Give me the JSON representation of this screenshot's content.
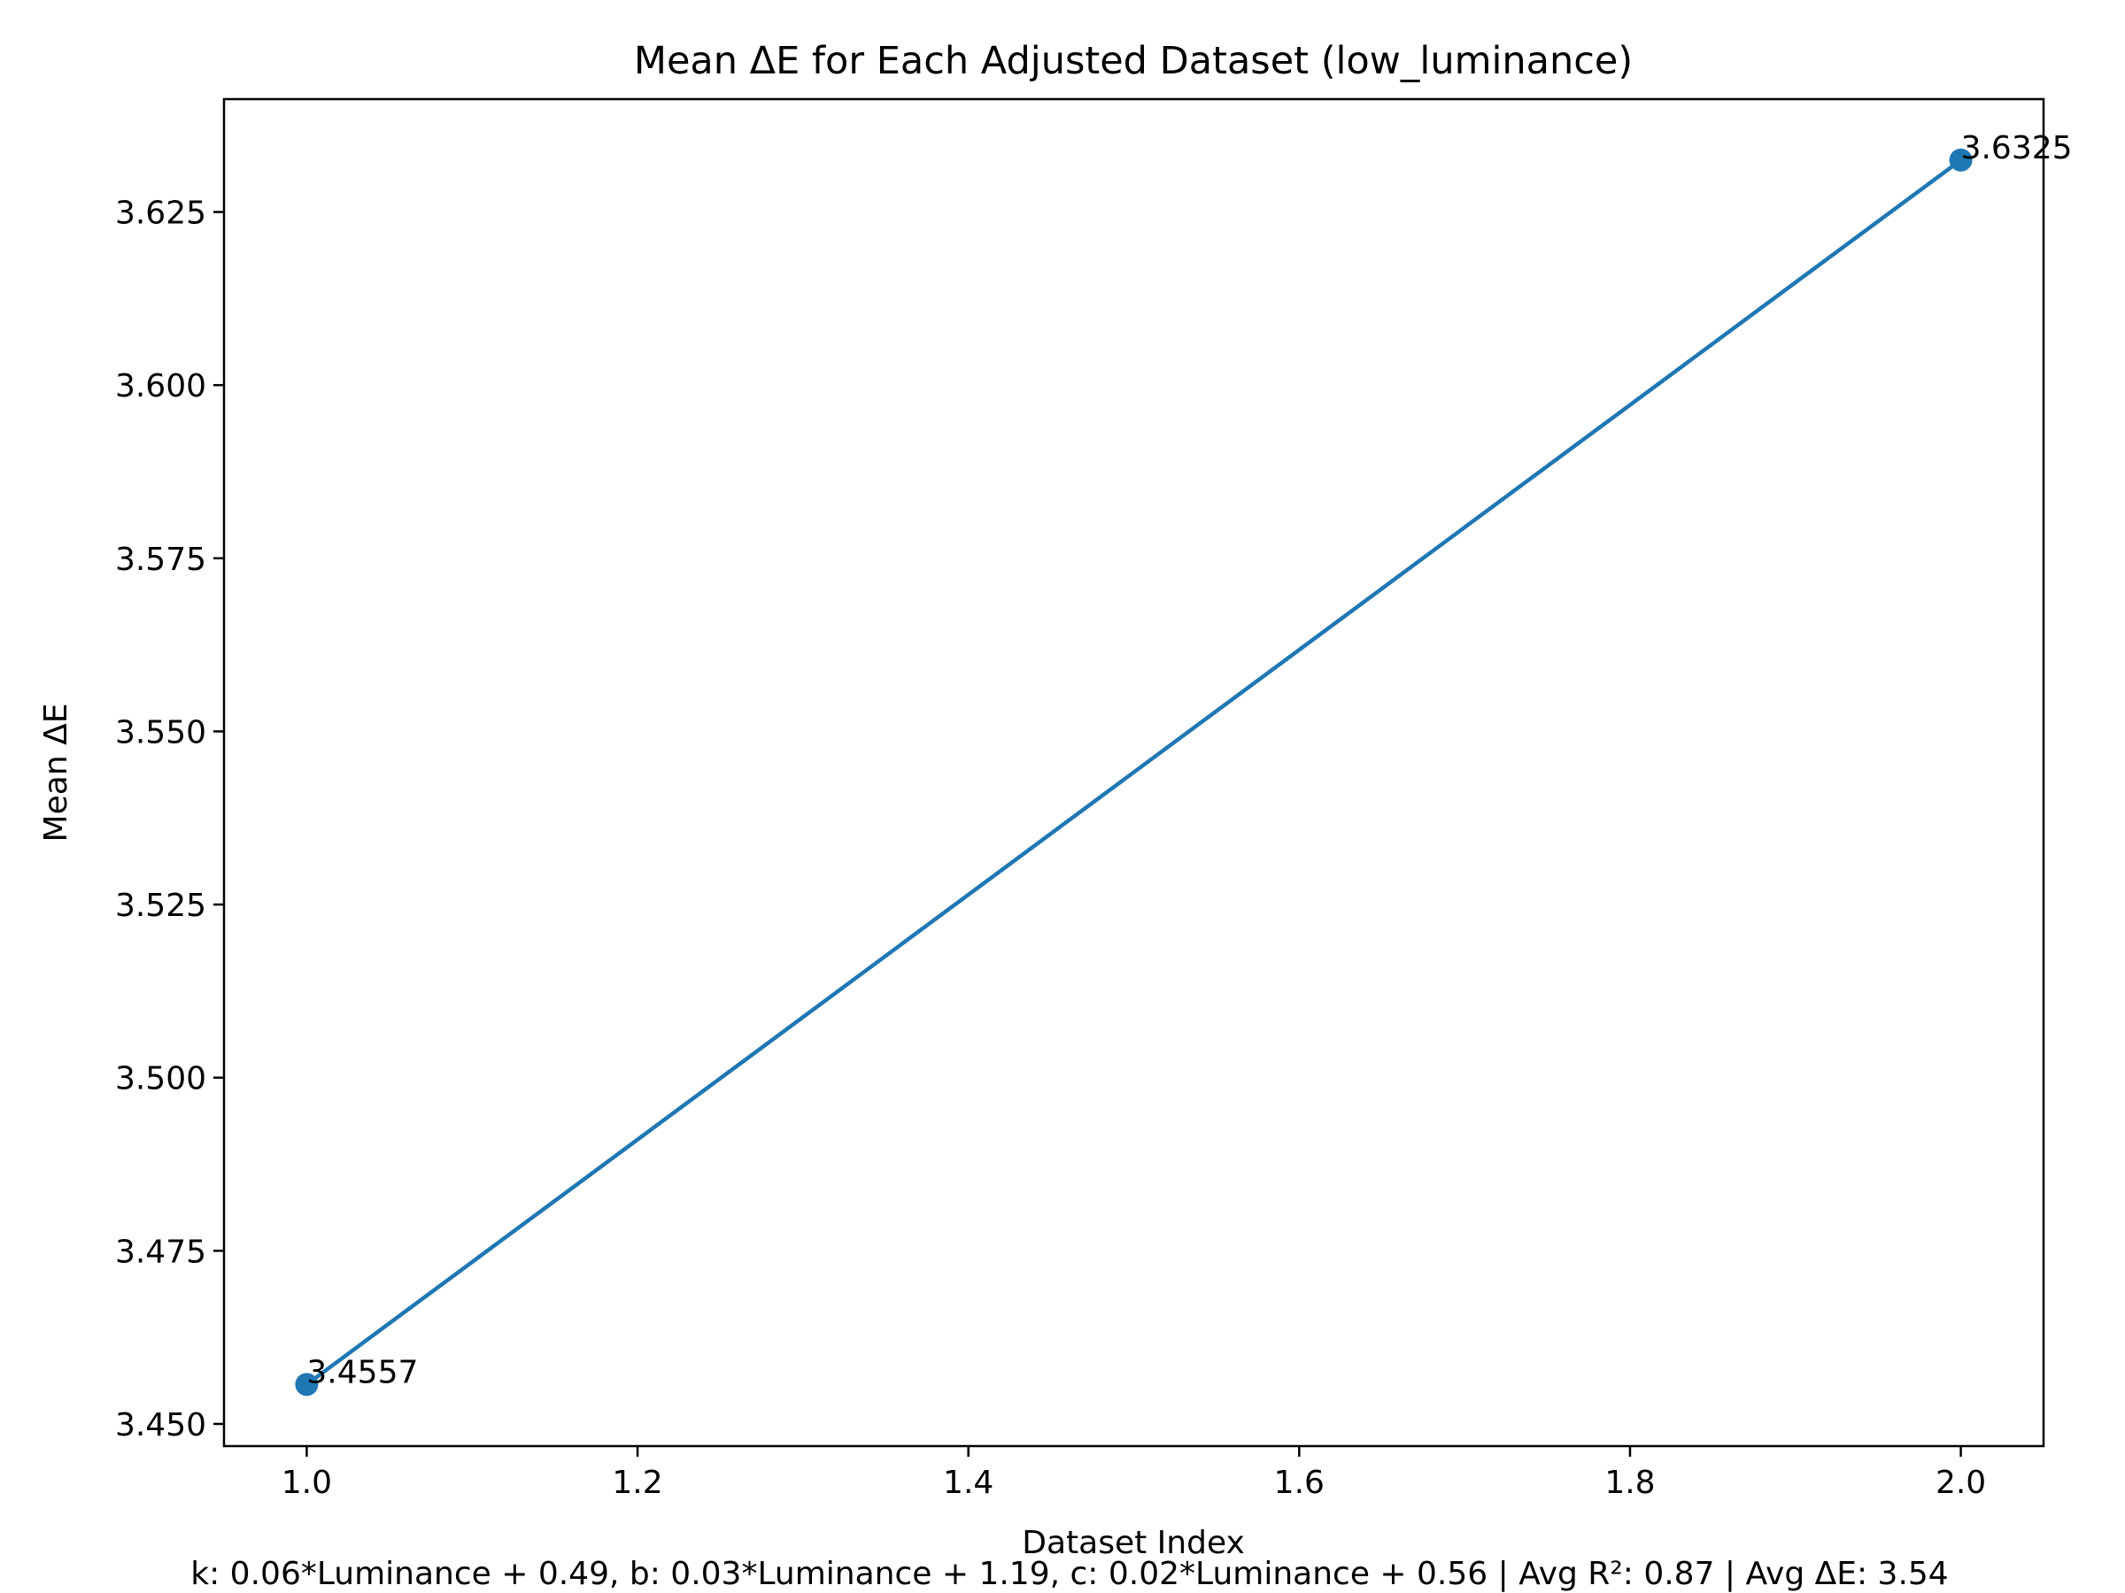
{
  "chart_data": {
    "type": "line",
    "title": "Mean ΔE for Each Adjusted Dataset (low_luminance)",
    "xlabel": "Dataset Index",
    "ylabel": "Mean ΔE",
    "xlim": [
      0.95,
      2.05
    ],
    "ylim": [
      3.4468,
      3.6413
    ],
    "xticks": [
      1.0,
      1.2,
      1.4,
      1.6,
      1.8,
      2.0
    ],
    "xtick_labels": [
      "1.0",
      "1.2",
      "1.4",
      "1.6",
      "1.8",
      "2.0"
    ],
    "yticks": [
      3.45,
      3.475,
      3.5,
      3.525,
      3.55,
      3.575,
      3.6,
      3.625
    ],
    "ytick_labels": [
      "3.450",
      "3.475",
      "3.500",
      "3.525",
      "3.550",
      "3.575",
      "3.600",
      "3.625"
    ],
    "grid": false,
    "x": [
      1,
      2
    ],
    "series": [
      {
        "values": [
          3.4557,
          3.6325
        ],
        "point_labels": [
          "3.4557",
          "3.6325"
        ],
        "color": "#1f77b4",
        "marker": "circle"
      }
    ]
  },
  "footer": {
    "summary": "k: 0.06*Luminance + 0.49, b: 0.03*Luminance + 1.19, c: 0.02*Luminance + 0.56 | Avg R²: 0.87 | Avg ΔE: 3.54"
  }
}
